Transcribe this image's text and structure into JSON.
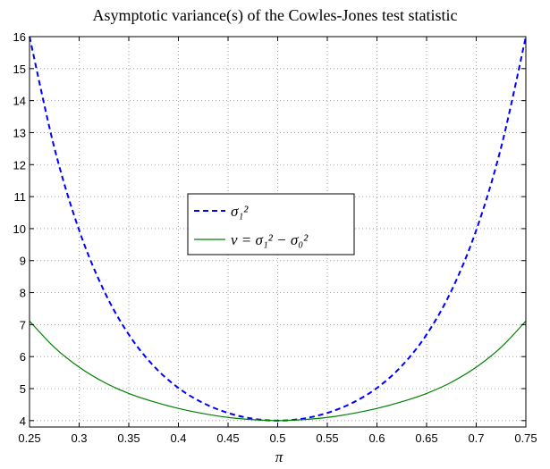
{
  "chart_data": {
    "type": "line",
    "title": "Asymptotic variance(s) of the Cowles-Jones test statistic",
    "xlabel": "π",
    "ylabel": "",
    "xlim": [
      0.25,
      0.75
    ],
    "ylim": [
      3.8,
      16
    ],
    "grid": true,
    "legend_position": "center",
    "x_ticks": [
      0.25,
      0.3,
      0.35,
      0.4,
      0.45,
      0.5,
      0.55,
      0.6,
      0.65,
      0.7,
      0.75
    ],
    "x_tick_labels": [
      "0.25",
      "0.3",
      "0.35",
      "0.4",
      "0.45",
      "0.5",
      "0.55",
      "0.6",
      "0.65",
      "0.7",
      "0.75"
    ],
    "y_ticks": [
      4,
      5,
      6,
      7,
      8,
      9,
      10,
      11,
      12,
      13,
      14,
      15,
      16
    ],
    "y_tick_labels": [
      "4",
      "5",
      "6",
      "7",
      "8",
      "9",
      "10",
      "11",
      "12",
      "13",
      "14",
      "15",
      "16"
    ],
    "series": [
      {
        "name": "σ₁²",
        "legend_label": "σ₁²",
        "color": "#0000ff",
        "style": "dashed",
        "x": [
          0.25,
          0.275,
          0.3,
          0.325,
          0.35,
          0.375,
          0.4,
          0.425,
          0.45,
          0.475,
          0.5,
          0.525,
          0.55,
          0.575,
          0.6,
          0.625,
          0.65,
          0.675,
          0.7,
          0.725,
          0.75
        ],
        "values": [
          16.0,
          12.53,
          9.95,
          8.06,
          6.69,
          5.71,
          5.02,
          4.55,
          4.24,
          4.06,
          4.0,
          4.06,
          4.24,
          4.55,
          5.02,
          5.71,
          6.69,
          8.06,
          9.95,
          12.53,
          16.0
        ]
      },
      {
        "name": "ν = σ₁² − σ₀²",
        "legend_label": "ν = σ₁² − σ₀²",
        "color": "#007f00",
        "style": "solid",
        "x": [
          0.25,
          0.275,
          0.3,
          0.325,
          0.35,
          0.375,
          0.4,
          0.425,
          0.45,
          0.475,
          0.5,
          0.525,
          0.55,
          0.575,
          0.6,
          0.625,
          0.65,
          0.675,
          0.7,
          0.725,
          0.75
        ],
        "values": [
          7.11,
          6.29,
          5.67,
          5.2,
          4.85,
          4.59,
          4.38,
          4.22,
          4.1,
          4.03,
          4.0,
          4.03,
          4.1,
          4.22,
          4.38,
          4.59,
          4.85,
          5.2,
          5.67,
          6.29,
          7.11
        ]
      }
    ]
  }
}
